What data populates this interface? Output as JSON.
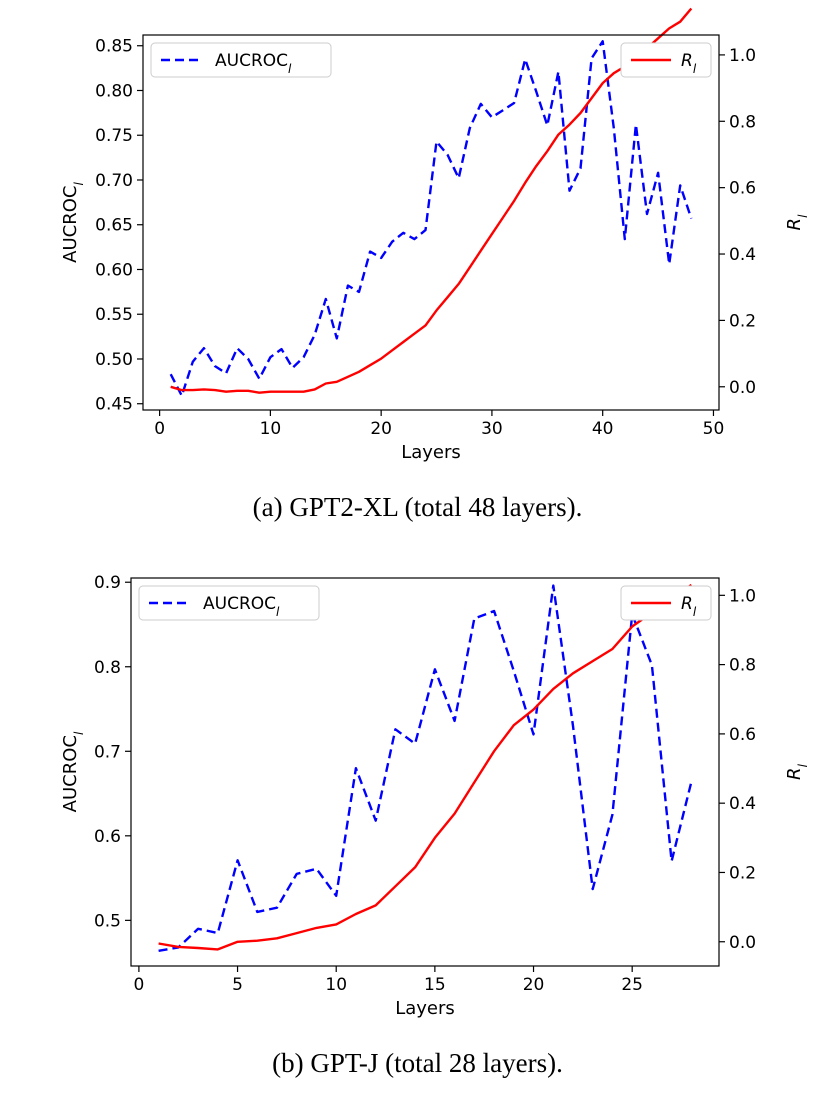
{
  "chart_data": [
    {
      "type": "line",
      "caption": "(a) GPT2-XL (total 48 layers).",
      "xlabel": "Layers",
      "ylabel_left": "AUCROC",
      "ylabel_left_sub": "l",
      "ylabel_right": "R",
      "ylabel_right_sub": "l",
      "xlim": [
        -1.5,
        50.5
      ],
      "ylim_left": [
        0.443,
        0.862
      ],
      "ylim_right": [
        -0.07,
        1.06
      ],
      "xticks": [
        0,
        10,
        20,
        30,
        40,
        50
      ],
      "yticks_left": [
        0.45,
        0.5,
        0.55,
        0.6,
        0.65,
        0.7,
        0.75,
        0.8,
        0.85
      ],
      "yticks_left_labels": [
        "0.45",
        "0.50",
        "0.55",
        "0.60",
        "0.65",
        "0.70",
        "0.75",
        "0.80",
        "0.85"
      ],
      "yticks_right": [
        0.0,
        0.2,
        0.4,
        0.6,
        0.8,
        1.0
      ],
      "yticks_right_labels": [
        "0.0",
        "0.2",
        "0.4",
        "0.6",
        "0.8",
        "1.0"
      ],
      "xtick_labels": [
        "0",
        "10",
        "20",
        "30",
        "40",
        "50"
      ],
      "legend_left": {
        "label": "AUCROC",
        "sub": "l",
        "position": "top-left"
      },
      "legend_right": {
        "label": "R",
        "sub": "l",
        "position": "top-right"
      },
      "series": [
        {
          "name": "AUCROC_l",
          "axis": "left",
          "style": "dashed",
          "color": "#0000ff",
          "x": [
            1,
            2,
            3,
            4,
            5,
            6,
            7,
            8,
            9,
            10,
            11,
            12,
            13,
            14,
            15,
            16,
            17,
            18,
            19,
            20,
            21,
            22,
            23,
            24,
            25,
            26,
            27,
            28,
            29,
            30,
            31,
            32,
            33,
            34,
            35,
            36,
            37,
            38,
            39,
            40,
            41,
            42,
            43,
            44,
            45,
            46,
            47,
            48
          ],
          "y": [
            0.483,
            0.459,
            0.497,
            0.512,
            0.492,
            0.484,
            0.512,
            0.5,
            0.478,
            0.502,
            0.511,
            0.49,
            0.502,
            0.527,
            0.567,
            0.523,
            0.582,
            0.575,
            0.62,
            0.613,
            0.631,
            0.641,
            0.634,
            0.644,
            0.743,
            0.728,
            0.702,
            0.758,
            0.785,
            0.77,
            0.778,
            0.786,
            0.835,
            0.799,
            0.761,
            0.821,
            0.688,
            0.713,
            0.836,
            0.855,
            0.758,
            0.634,
            0.762,
            0.662,
            0.708,
            0.606,
            0.694,
            0.657
          ]
        },
        {
          "name": "R_l",
          "axis": "right",
          "style": "solid",
          "color": "#ff0000",
          "x": [
            1,
            2,
            3,
            4,
            5,
            6,
            7,
            8,
            9,
            10,
            11,
            12,
            13,
            14,
            15,
            16,
            17,
            18,
            19,
            20,
            21,
            22,
            23,
            24,
            25,
            26,
            27,
            28,
            29,
            30,
            31,
            32,
            33,
            34,
            35,
            36,
            37,
            38,
            39,
            40,
            41,
            42,
            43,
            44,
            45,
            46,
            47,
            48
          ],
          "y": [
            0.0,
            -0.01,
            -0.01,
            -0.008,
            -0.01,
            -0.015,
            -0.012,
            -0.012,
            -0.018,
            -0.015,
            -0.015,
            -0.015,
            -0.015,
            -0.008,
            0.01,
            0.015,
            0.03,
            0.045,
            0.065,
            0.085,
            0.11,
            0.135,
            0.16,
            0.185,
            0.23,
            0.27,
            0.31,
            0.36,
            0.41,
            0.46,
            0.51,
            0.56,
            0.615,
            0.665,
            0.71,
            0.76,
            0.79,
            0.825,
            0.87,
            0.915,
            0.945,
            0.965,
            1.0,
            1.02,
            1.05,
            1.08,
            1.1,
            1.14
          ]
        }
      ]
    },
    {
      "type": "line",
      "caption": "(b) GPT-J (total 28 layers).",
      "xlabel": "Layers",
      "ylabel_left": "AUCROC",
      "ylabel_left_sub": "l",
      "ylabel_right": "R",
      "ylabel_right_sub": "l",
      "xlim": [
        -0.4,
        29.4
      ],
      "ylim_left": [
        0.446,
        0.905
      ],
      "ylim_right": [
        -0.07,
        1.05
      ],
      "xticks": [
        0,
        5,
        10,
        15,
        20,
        25
      ],
      "yticks_left": [
        0.5,
        0.6,
        0.7,
        0.8,
        0.9
      ],
      "yticks_left_labels": [
        "0.5",
        "0.6",
        "0.7",
        "0.8",
        "0.9"
      ],
      "yticks_right": [
        0.0,
        0.2,
        0.4,
        0.6,
        0.8,
        1.0
      ],
      "yticks_right_labels": [
        "0.0",
        "0.2",
        "0.4",
        "0.6",
        "0.8",
        "1.0"
      ],
      "xtick_labels": [
        "0",
        "5",
        "10",
        "15",
        "20",
        "25"
      ],
      "legend_left": {
        "label": "AUCROC",
        "sub": "l",
        "position": "top-left"
      },
      "legend_right": {
        "label": "R",
        "sub": "l",
        "position": "top-right"
      },
      "series": [
        {
          "name": "AUCROC_l",
          "axis": "left",
          "style": "dashed",
          "color": "#0000ff",
          "x": [
            1,
            2,
            3,
            4,
            5,
            6,
            7,
            8,
            9,
            10,
            11,
            12,
            13,
            14,
            15,
            16,
            17,
            18,
            19,
            20,
            21,
            22,
            23,
            24,
            25,
            26,
            27,
            28
          ],
          "y": [
            0.464,
            0.468,
            0.49,
            0.485,
            0.571,
            0.51,
            0.515,
            0.555,
            0.561,
            0.529,
            0.68,
            0.618,
            0.726,
            0.709,
            0.797,
            0.736,
            0.857,
            0.866,
            0.795,
            0.72,
            0.896,
            0.73,
            0.537,
            0.625,
            0.862,
            0.802,
            0.57,
            0.664
          ]
        },
        {
          "name": "R_l",
          "axis": "right",
          "style": "solid",
          "color": "#ff0000",
          "x": [
            1,
            2,
            3,
            4,
            5,
            6,
            7,
            8,
            9,
            10,
            11,
            12,
            13,
            14,
            15,
            16,
            17,
            18,
            19,
            20,
            21,
            22,
            23,
            24,
            25,
            26,
            27,
            28
          ],
          "y": [
            -0.005,
            -0.015,
            -0.018,
            -0.022,
            0.0,
            0.003,
            0.01,
            0.025,
            0.04,
            0.05,
            0.08,
            0.105,
            0.16,
            0.215,
            0.3,
            0.37,
            0.46,
            0.55,
            0.625,
            0.67,
            0.73,
            0.775,
            0.81,
            0.845,
            0.91,
            0.95,
            0.99,
            1.03
          ]
        }
      ]
    }
  ]
}
